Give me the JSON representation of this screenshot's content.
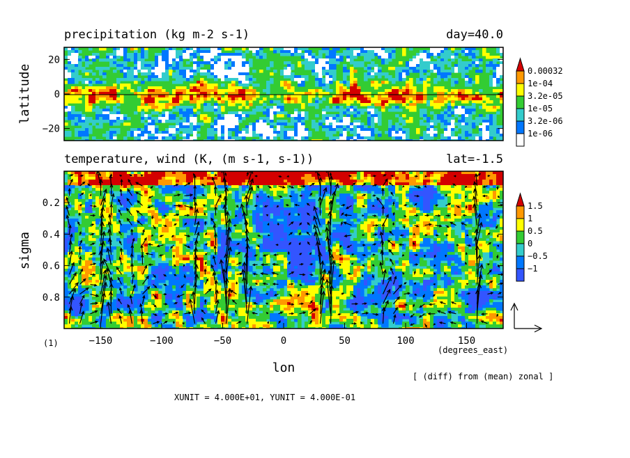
{
  "chart_data": [
    {
      "type": "heatmap",
      "title": "precipitation (kg m-2 s-1)",
      "title_right": "day=40.0",
      "ylabel": "latitude",
      "xlim": [
        -180,
        180
      ],
      "ylim": [
        -27,
        27
      ],
      "yticks": [
        20,
        0,
        -20
      ],
      "legend": {
        "placement": "right",
        "levels": [
          "0.00032",
          "1e-04",
          "3.2e-05",
          "1e-05",
          "3.2e-06",
          "1e-06"
        ],
        "colors": [
          "#d40000",
          "#ff9900",
          "#ffff00",
          "#33cc33",
          "#33cccc",
          "#0077ff",
          "#ffffff"
        ]
      }
    },
    {
      "type": "heatmap",
      "title": "temperature, wind (K, (m s-1, s-1))",
      "title_right": "lat=-1.5",
      "xlabel": "lon",
      "ylabel": "sigma",
      "xlim": [
        -180,
        180
      ],
      "ylim": [
        1.0,
        0.0
      ],
      "xticks": [
        -150,
        -100,
        -50,
        0,
        50,
        100,
        150
      ],
      "yticks": [
        "0.2",
        "0.4",
        "0.6",
        "0.8"
      ],
      "xunit_label": "(degrees_east)",
      "legend": {
        "placement": "right",
        "levels": [
          "1.5",
          "1",
          "0.5",
          "0",
          "-0.5",
          "-1"
        ],
        "display_levels": [
          "1.5",
          "1",
          "0.5",
          "0",
          "−0.5",
          "−1"
        ],
        "colors": [
          "#d40000",
          "#ff9900",
          "#ffff00",
          "#33cc33",
          "#33cccc",
          "#0077ff",
          "#3355ff"
        ]
      },
      "vector_key": {
        "xunit": "4.000E+01",
        "yunit": "4.000E-01"
      }
    }
  ],
  "annotations": {
    "panel_number": "(1)",
    "diff_note": "[ (diff) from (mean) zonal ]",
    "unit_line": "XUNIT = 4.000E+01, YUNIT = 4.000E-01"
  },
  "colors": {
    "precip_bg": "#33cc33",
    "temp_bg": "#33cccc",
    "frame": "#000000"
  }
}
